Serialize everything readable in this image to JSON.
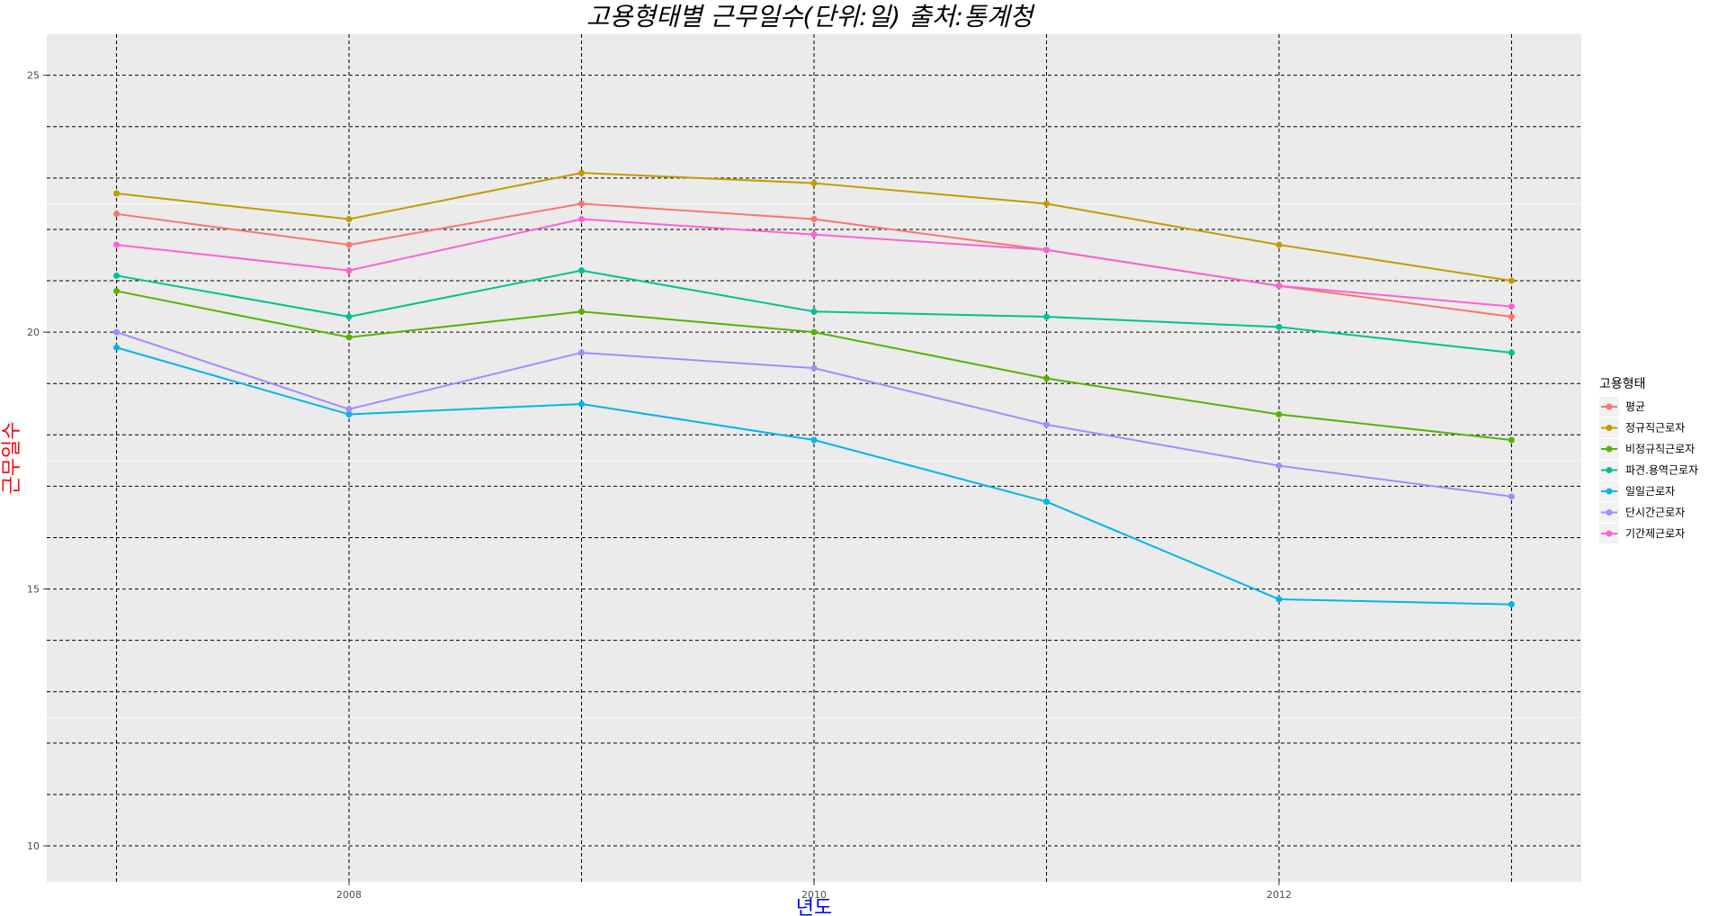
{
  "chart_data": {
    "type": "line",
    "title": "고용형태별 근무일수(단위:일) 출처:통계청",
    "xlabel": "년도",
    "ylabel": "근무일수",
    "x": [
      2007,
      2008,
      2009,
      2010,
      2011,
      2012,
      2013
    ],
    "x_tick_labels": [
      "2008",
      "2010",
      "2012"
    ],
    "y_tick_labels": [
      "10",
      "15",
      "20",
      "25"
    ],
    "ylim": [
      9.3,
      25.8
    ],
    "xlim": [
      2006.7,
      2013.3
    ],
    "grid": true,
    "legend_title": "고용형태",
    "legend_position": "right",
    "series": [
      {
        "name": "평균",
        "color": "#F8766D",
        "values": [
          22.3,
          21.7,
          22.5,
          22.2,
          21.6,
          20.9,
          20.3
        ]
      },
      {
        "name": "정규직근로자",
        "color": "#C49A00",
        "values": [
          22.7,
          22.2,
          23.1,
          22.9,
          22.5,
          21.7,
          21.0
        ]
      },
      {
        "name": "비정규직근로자",
        "color": "#53B400",
        "values": [
          20.8,
          19.9,
          20.4,
          20.0,
          19.1,
          18.4,
          17.9
        ]
      },
      {
        "name": "파견.용역근로자",
        "color": "#00C094",
        "values": [
          21.1,
          20.3,
          21.2,
          20.4,
          20.3,
          20.1,
          19.6
        ]
      },
      {
        "name": "일일근로자",
        "color": "#00B6EB",
        "values": [
          19.7,
          18.4,
          18.6,
          17.9,
          16.7,
          14.8,
          14.7
        ]
      },
      {
        "name": "단시간근로자",
        "color": "#A58AFF",
        "values": [
          20.0,
          18.5,
          19.6,
          19.3,
          18.2,
          17.4,
          16.8
        ]
      },
      {
        "name": "기간제근로자",
        "color": "#FB61D7",
        "values": [
          21.7,
          21.2,
          22.2,
          21.9,
          21.6,
          20.9,
          20.5
        ]
      }
    ]
  }
}
